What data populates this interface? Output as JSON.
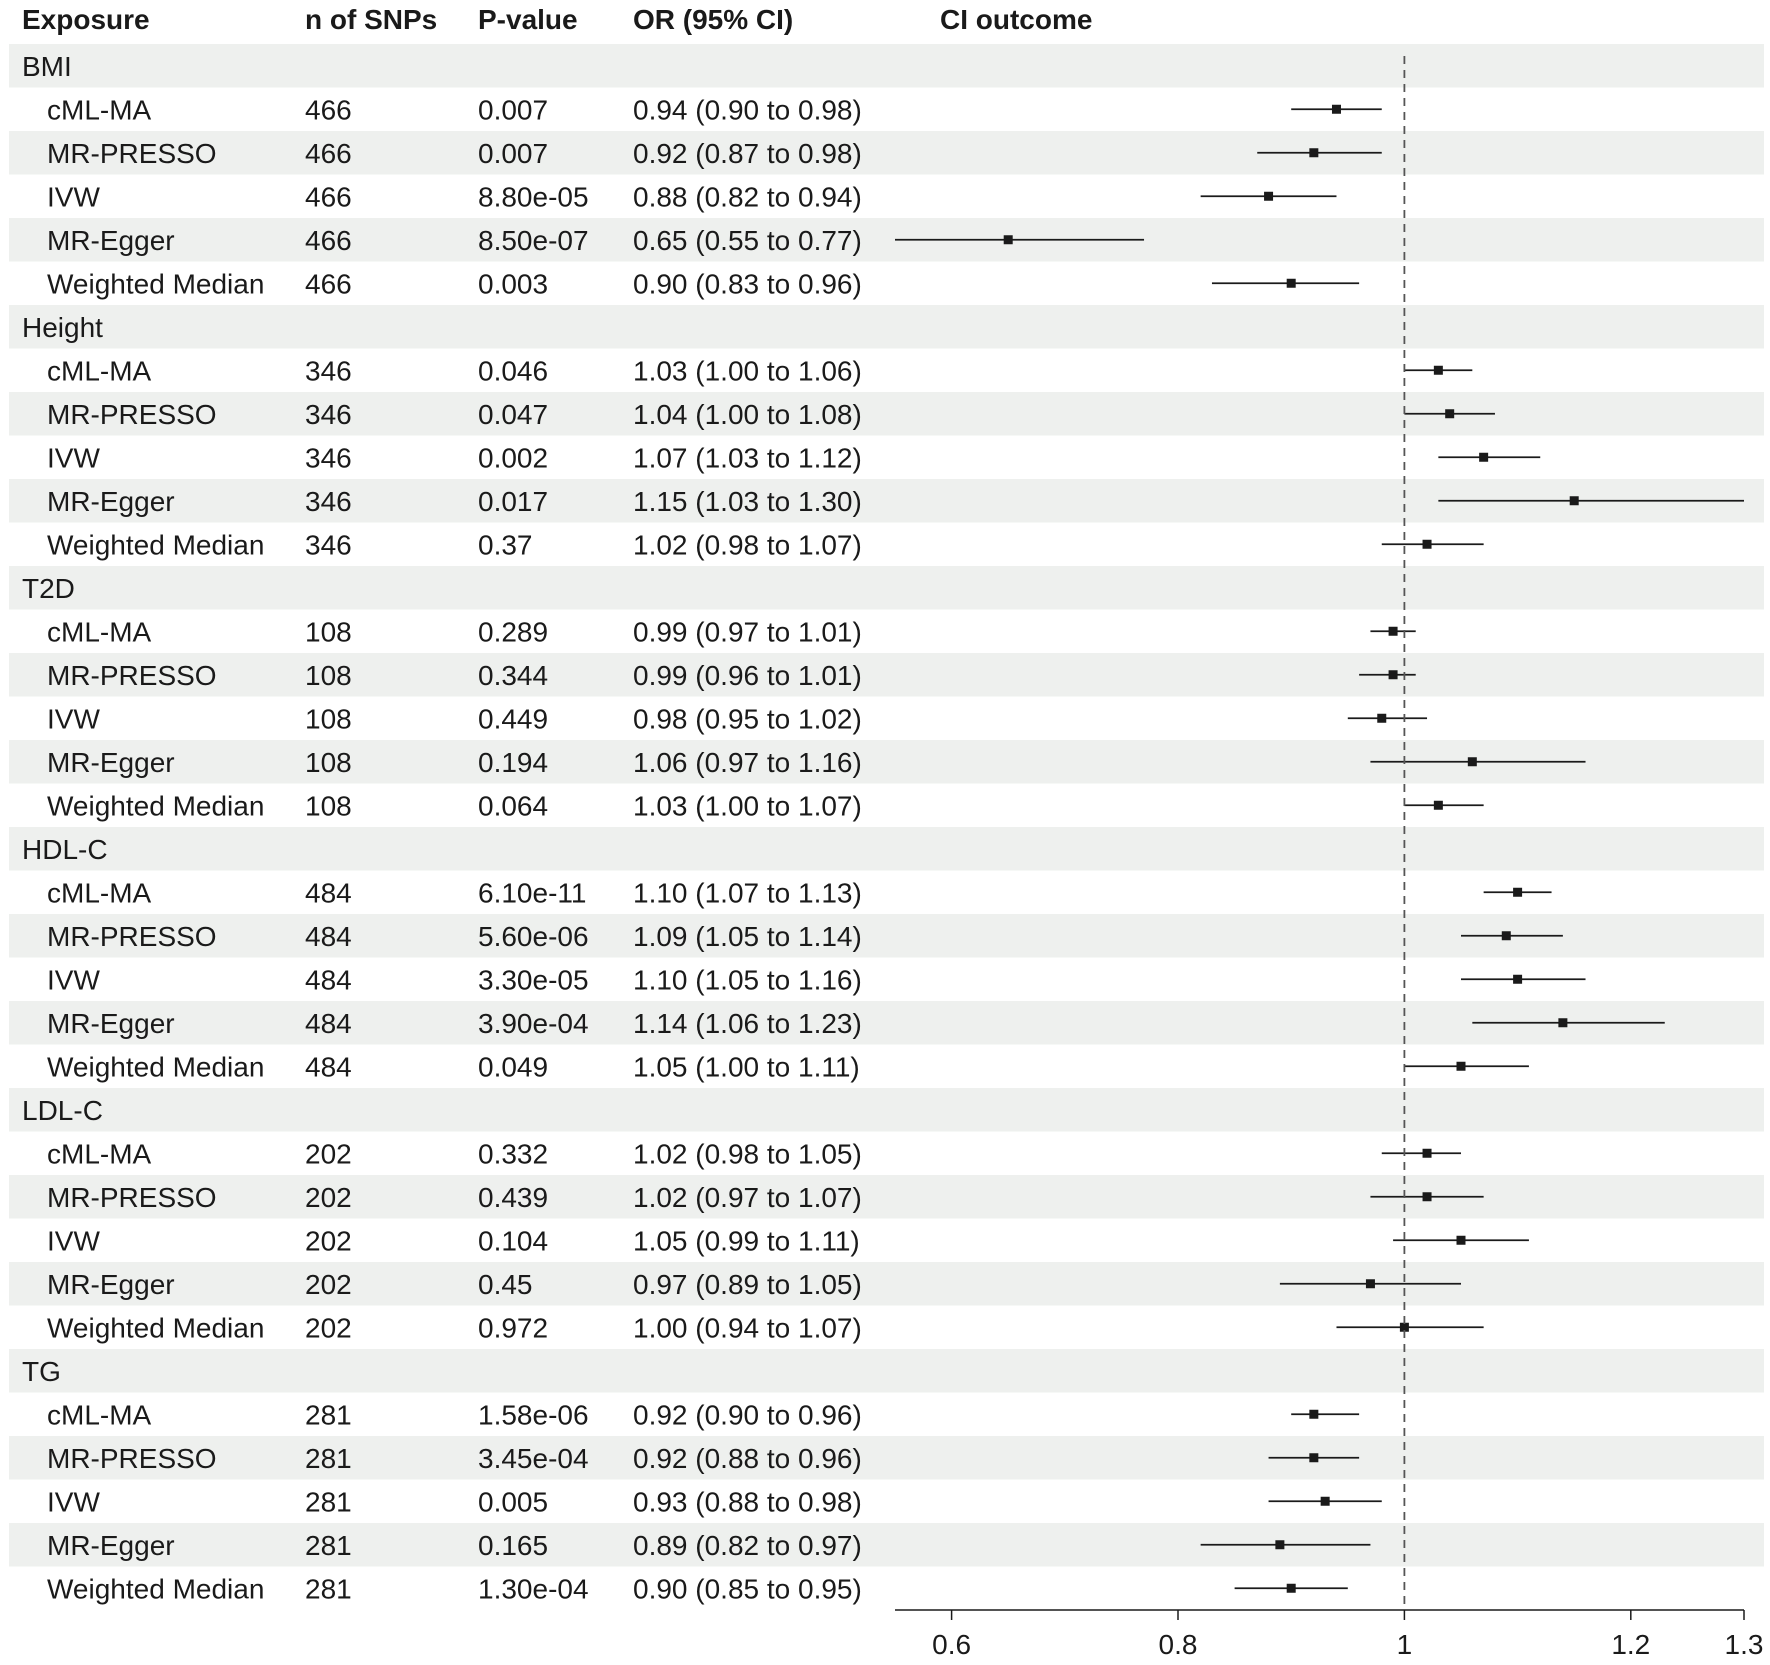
{
  "headers": {
    "exposure": "Exposure",
    "n_snps": "n of SNPs",
    "pvalue": "P-value",
    "or_ci": "OR (95% CI)",
    "ci_outcome": "CI outcome"
  },
  "colors": {
    "band": "#eef0ee",
    "ink": "#1a1a1a",
    "refline": "#555555"
  },
  "chart_data": {
    "type": "forest",
    "title": "",
    "xlabel": "",
    "xlim": [
      0.55,
      1.3
    ],
    "reference_line": 1,
    "xticks": [
      0.6,
      0.8,
      1,
      1.2,
      1.3
    ],
    "xtick_labels": [
      "0.6",
      "0.8",
      "1",
      "1.2",
      "1.3"
    ],
    "groups": [
      {
        "name": "BMI",
        "rows": [
          {
            "method": "cML-MA",
            "n": "466",
            "p": "0.007",
            "or_text": "0.94 (0.90 to 0.98)",
            "or": 0.94,
            "lo": 0.9,
            "hi": 0.98
          },
          {
            "method": "MR-PRESSO",
            "n": "466",
            "p": "0.007",
            "or_text": "0.92 (0.87 to 0.98)",
            "or": 0.92,
            "lo": 0.87,
            "hi": 0.98
          },
          {
            "method": "IVW",
            "n": "466",
            "p": "8.80e-05",
            "or_text": "0.88 (0.82 to 0.94)",
            "or": 0.88,
            "lo": 0.82,
            "hi": 0.94
          },
          {
            "method": "MR-Egger",
            "n": "466",
            "p": "8.50e-07",
            "or_text": "0.65 (0.55 to 0.77)",
            "or": 0.65,
            "lo": 0.55,
            "hi": 0.77
          },
          {
            "method": "Weighted Median",
            "n": "466",
            "p": "0.003",
            "or_text": "0.90 (0.83 to 0.96)",
            "or": 0.9,
            "lo": 0.83,
            "hi": 0.96
          }
        ]
      },
      {
        "name": "Height",
        "rows": [
          {
            "method": "cML-MA",
            "n": "346",
            "p": "0.046",
            "or_text": "1.03 (1.00 to 1.06)",
            "or": 1.03,
            "lo": 1.0,
            "hi": 1.06
          },
          {
            "method": "MR-PRESSO",
            "n": "346",
            "p": "0.047",
            "or_text": "1.04 (1.00 to 1.08)",
            "or": 1.04,
            "lo": 1.0,
            "hi": 1.08
          },
          {
            "method": "IVW",
            "n": "346",
            "p": "0.002",
            "or_text": "1.07 (1.03 to 1.12)",
            "or": 1.07,
            "lo": 1.03,
            "hi": 1.12
          },
          {
            "method": "MR-Egger",
            "n": "346",
            "p": "0.017",
            "or_text": "1.15 (1.03 to 1.30)",
            "or": 1.15,
            "lo": 1.03,
            "hi": 1.3
          },
          {
            "method": "Weighted Median",
            "n": "346",
            "p": "0.37",
            "or_text": "1.02 (0.98 to 1.07)",
            "or": 1.02,
            "lo": 0.98,
            "hi": 1.07
          }
        ]
      },
      {
        "name": "T2D",
        "rows": [
          {
            "method": "cML-MA",
            "n": "108",
            "p": "0.289",
            "or_text": "0.99 (0.97 to 1.01)",
            "or": 0.99,
            "lo": 0.97,
            "hi": 1.01
          },
          {
            "method": "MR-PRESSO",
            "n": "108",
            "p": "0.344",
            "or_text": "0.99 (0.96 to 1.01)",
            "or": 0.99,
            "lo": 0.96,
            "hi": 1.01
          },
          {
            "method": "IVW",
            "n": "108",
            "p": "0.449",
            "or_text": "0.98 (0.95 to 1.02)",
            "or": 0.98,
            "lo": 0.95,
            "hi": 1.02
          },
          {
            "method": "MR-Egger",
            "n": "108",
            "p": "0.194",
            "or_text": "1.06 (0.97 to 1.16)",
            "or": 1.06,
            "lo": 0.97,
            "hi": 1.16
          },
          {
            "method": "Weighted Median",
            "n": "108",
            "p": "0.064",
            "or_text": "1.03 (1.00 to 1.07)",
            "or": 1.03,
            "lo": 1.0,
            "hi": 1.07
          }
        ]
      },
      {
        "name": "HDL-C",
        "rows": [
          {
            "method": "cML-MA",
            "n": "484",
            "p": "6.10e-11",
            "or_text": "1.10 (1.07 to 1.13)",
            "or": 1.1,
            "lo": 1.07,
            "hi": 1.13
          },
          {
            "method": "MR-PRESSO",
            "n": "484",
            "p": "5.60e-06",
            "or_text": "1.09 (1.05 to 1.14)",
            "or": 1.09,
            "lo": 1.05,
            "hi": 1.14
          },
          {
            "method": "IVW",
            "n": "484",
            "p": "3.30e-05",
            "or_text": "1.10 (1.05 to 1.16)",
            "or": 1.1,
            "lo": 1.05,
            "hi": 1.16
          },
          {
            "method": "MR-Egger",
            "n": "484",
            "p": "3.90e-04",
            "or_text": "1.14 (1.06 to 1.23)",
            "or": 1.14,
            "lo": 1.06,
            "hi": 1.23
          },
          {
            "method": "Weighted Median",
            "n": "484",
            "p": "0.049",
            "or_text": "1.05 (1.00 to 1.11)",
            "or": 1.05,
            "lo": 1.0,
            "hi": 1.11
          }
        ]
      },
      {
        "name": "LDL-C",
        "rows": [
          {
            "method": "cML-MA",
            "n": "202",
            "p": "0.332",
            "or_text": "1.02 (0.98 to 1.05)",
            "or": 1.02,
            "lo": 0.98,
            "hi": 1.05
          },
          {
            "method": "MR-PRESSO",
            "n": "202",
            "p": "0.439",
            "or_text": "1.02 (0.97 to 1.07)",
            "or": 1.02,
            "lo": 0.97,
            "hi": 1.07
          },
          {
            "method": "IVW",
            "n": "202",
            "p": "0.104",
            "or_text": "1.05 (0.99 to 1.11)",
            "or": 1.05,
            "lo": 0.99,
            "hi": 1.11
          },
          {
            "method": "MR-Egger",
            "n": "202",
            "p": "0.45",
            "or_text": "0.97 (0.89 to 1.05)",
            "or": 0.97,
            "lo": 0.89,
            "hi": 1.05
          },
          {
            "method": "Weighted Median",
            "n": "202",
            "p": "0.972",
            "or_text": "1.00 (0.94 to 1.07)",
            "or": 1.0,
            "lo": 0.94,
            "hi": 1.07
          }
        ]
      },
      {
        "name": "TG",
        "rows": [
          {
            "method": "cML-MA",
            "n": "281",
            "p": "1.58e-06",
            "or_text": "0.92 (0.90 to 0.96)",
            "or": 0.92,
            "lo": 0.9,
            "hi": 0.96
          },
          {
            "method": "MR-PRESSO",
            "n": "281",
            "p": "3.45e-04",
            "or_text": "0.92 (0.88 to 0.96)",
            "or": 0.92,
            "lo": 0.88,
            "hi": 0.96
          },
          {
            "method": "IVW",
            "n": "281",
            "p": "0.005",
            "or_text": "0.93 (0.88 to 0.98)",
            "or": 0.93,
            "lo": 0.88,
            "hi": 0.98
          },
          {
            "method": "MR-Egger",
            "n": "281",
            "p": "0.165",
            "or_text": "0.89 (0.82 to 0.97)",
            "or": 0.89,
            "lo": 0.82,
            "hi": 0.97
          },
          {
            "method": "Weighted Median",
            "n": "281",
            "p": "1.30e-04",
            "or_text": "0.90 (0.85 to 0.95)",
            "or": 0.9,
            "lo": 0.85,
            "hi": 0.95
          }
        ]
      }
    ]
  }
}
